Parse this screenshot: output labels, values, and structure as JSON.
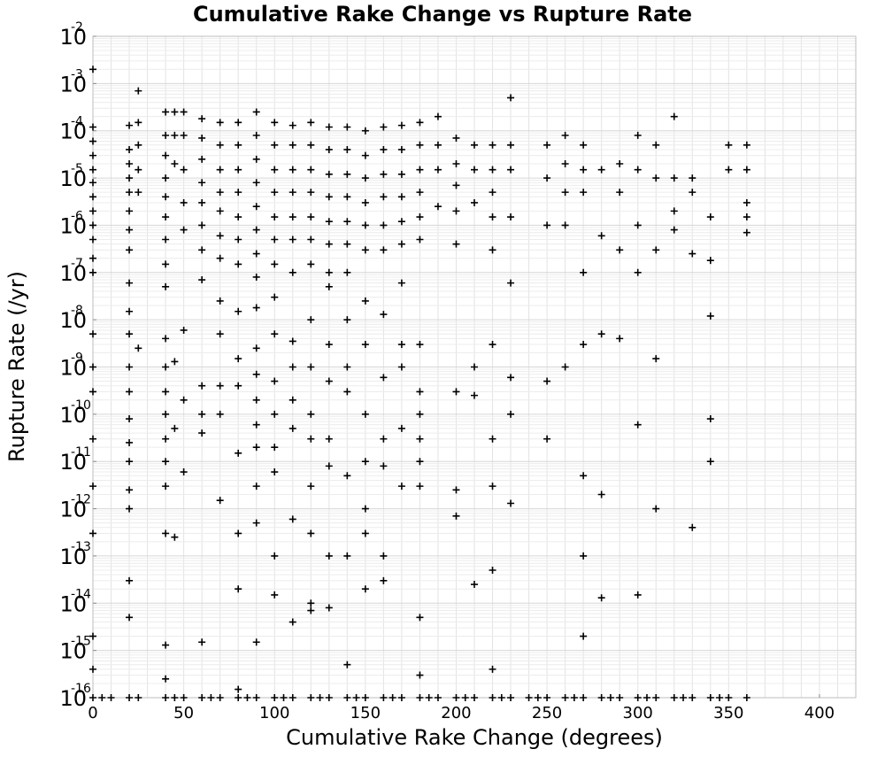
{
  "chart_data": {
    "type": "scatter",
    "title": "Cumulative Rake Change vs Rupture Rate",
    "xlabel": "Cumulative Rake Change (degrees)",
    "ylabel": "Rupture Rate (/yr)",
    "xlim": [
      0,
      420
    ],
    "ylim": [
      1e-16,
      0.01
    ],
    "yscale": "log",
    "grid": true,
    "marker": "plus",
    "xticks": [
      0,
      50,
      100,
      150,
      200,
      250,
      300,
      350,
      400
    ],
    "yticks": [
      {
        "base": "10",
        "exp": "-2"
      },
      {
        "base": "10",
        "exp": "-3"
      },
      {
        "base": "10",
        "exp": "-4"
      },
      {
        "base": "10",
        "exp": "-5"
      },
      {
        "base": "10",
        "exp": "-6"
      },
      {
        "base": "10",
        "exp": "-7"
      },
      {
        "base": "10",
        "exp": "-8"
      },
      {
        "base": "10",
        "exp": "-9"
      },
      {
        "base": "10",
        "exp": "-10"
      },
      {
        "base": "10",
        "exp": "-11"
      },
      {
        "base": "10",
        "exp": "-12"
      },
      {
        "base": "10",
        "exp": "-13"
      },
      {
        "base": "10",
        "exp": "-14"
      },
      {
        "base": "10",
        "exp": "-15"
      },
      {
        "base": "10",
        "exp": "-16"
      }
    ],
    "points": [
      [
        0,
        0.002
      ],
      [
        0,
        0.00012
      ],
      [
        0,
        6e-05
      ],
      [
        0,
        3e-05
      ],
      [
        0,
        1.5e-05
      ],
      [
        0,
        8e-06
      ],
      [
        0,
        4e-06
      ],
      [
        0,
        2e-06
      ],
      [
        0,
        1e-06
      ],
      [
        0,
        5e-07
      ],
      [
        0,
        2e-07
      ],
      [
        0,
        1e-07
      ],
      [
        0,
        5e-09
      ],
      [
        0,
        1e-09
      ],
      [
        0,
        3e-10
      ],
      [
        0,
        3e-11
      ],
      [
        0,
        3e-12
      ],
      [
        0,
        3e-13
      ],
      [
        0,
        2e-15
      ],
      [
        0,
        4e-16
      ],
      [
        20,
        0.00013
      ],
      [
        20,
        4e-05
      ],
      [
        20,
        2e-05
      ],
      [
        20,
        1e-05
      ],
      [
        20,
        5e-06
      ],
      [
        20,
        2e-06
      ],
      [
        20,
        8e-07
      ],
      [
        20,
        3e-07
      ],
      [
        20,
        6e-08
      ],
      [
        20,
        1.5e-08
      ],
      [
        20,
        5e-09
      ],
      [
        20,
        1e-09
      ],
      [
        20,
        3e-10
      ],
      [
        20,
        8e-11
      ],
      [
        20,
        2.5e-11
      ],
      [
        20,
        1e-11
      ],
      [
        20,
        2.5e-12
      ],
      [
        20,
        1e-12
      ],
      [
        20,
        3e-14
      ],
      [
        20,
        5e-15
      ],
      [
        25,
        0.0007
      ],
      [
        25,
        0.00015
      ],
      [
        25,
        5e-05
      ],
      [
        25,
        1.5e-05
      ],
      [
        25,
        5e-06
      ],
      [
        25,
        2.5e-09
      ],
      [
        40,
        0.00025
      ],
      [
        40,
        8e-05
      ],
      [
        40,
        3e-05
      ],
      [
        40,
        1e-05
      ],
      [
        40,
        4e-06
      ],
      [
        40,
        1.5e-06
      ],
      [
        40,
        5e-07
      ],
      [
        40,
        1.5e-07
      ],
      [
        40,
        5e-08
      ],
      [
        40,
        4e-09
      ],
      [
        40,
        1e-09
      ],
      [
        40,
        3e-10
      ],
      [
        40,
        1e-10
      ],
      [
        40,
        3e-11
      ],
      [
        40,
        1e-11
      ],
      [
        40,
        3e-12
      ],
      [
        40,
        3e-13
      ],
      [
        40,
        1.3e-15
      ],
      [
        40,
        2.5e-16
      ],
      [
        45,
        0.00025
      ],
      [
        45,
        8e-05
      ],
      [
        45,
        2e-05
      ],
      [
        45,
        1.3e-09
      ],
      [
        45,
        5e-11
      ],
      [
        45,
        2.5e-13
      ],
      [
        50,
        0.00025
      ],
      [
        50,
        8e-05
      ],
      [
        50,
        1.5e-05
      ],
      [
        50,
        3e-06
      ],
      [
        50,
        8e-07
      ],
      [
        50,
        6e-09
      ],
      [
        50,
        2e-10
      ],
      [
        50,
        6e-12
      ],
      [
        60,
        0.00018
      ],
      [
        60,
        7e-05
      ],
      [
        60,
        2.5e-05
      ],
      [
        60,
        8e-06
      ],
      [
        60,
        3e-06
      ],
      [
        60,
        1e-06
      ],
      [
        60,
        3e-07
      ],
      [
        60,
        7e-08
      ],
      [
        60,
        4e-10
      ],
      [
        60,
        1e-10
      ],
      [
        60,
        4e-11
      ],
      [
        60,
        1.5e-15
      ],
      [
        70,
        0.00015
      ],
      [
        70,
        5e-05
      ],
      [
        70,
        1.5e-05
      ],
      [
        70,
        5e-06
      ],
      [
        70,
        2e-06
      ],
      [
        70,
        6e-07
      ],
      [
        70,
        2e-07
      ],
      [
        70,
        2.5e-08
      ],
      [
        70,
        5e-09
      ],
      [
        70,
        4e-10
      ],
      [
        70,
        1e-10
      ],
      [
        70,
        1.5e-12
      ],
      [
        80,
        0.00015
      ],
      [
        80,
        5e-05
      ],
      [
        80,
        1.5e-05
      ],
      [
        80,
        5e-06
      ],
      [
        80,
        1.5e-06
      ],
      [
        80,
        5e-07
      ],
      [
        80,
        1.5e-07
      ],
      [
        80,
        1.5e-08
      ],
      [
        80,
        1.5e-09
      ],
      [
        80,
        4e-10
      ],
      [
        80,
        1.5e-11
      ],
      [
        80,
        3e-13
      ],
      [
        80,
        2e-14
      ],
      [
        80,
        1.5e-16
      ],
      [
        90,
        0.00025
      ],
      [
        90,
        8e-05
      ],
      [
        90,
        2.5e-05
      ],
      [
        90,
        8e-06
      ],
      [
        90,
        2.5e-06
      ],
      [
        90,
        8e-07
      ],
      [
        90,
        2.5e-07
      ],
      [
        90,
        8e-08
      ],
      [
        90,
        1.8e-08
      ],
      [
        90,
        2.5e-09
      ],
      [
        90,
        7e-10
      ],
      [
        90,
        2e-10
      ],
      [
        90,
        6e-11
      ],
      [
        90,
        2e-11
      ],
      [
        90,
        3e-12
      ],
      [
        90,
        5e-13
      ],
      [
        90,
        1.5e-15
      ],
      [
        100,
        0.00015
      ],
      [
        100,
        5e-05
      ],
      [
        100,
        1.5e-05
      ],
      [
        100,
        5e-06
      ],
      [
        100,
        1.5e-06
      ],
      [
        100,
        5e-07
      ],
      [
        100,
        1.5e-07
      ],
      [
        100,
        3e-08
      ],
      [
        100,
        5e-09
      ],
      [
        100,
        5e-10
      ],
      [
        100,
        1e-10
      ],
      [
        100,
        2e-11
      ],
      [
        100,
        6e-12
      ],
      [
        100,
        1e-13
      ],
      [
        100,
        1.5e-14
      ],
      [
        110,
        0.00013
      ],
      [
        110,
        5e-05
      ],
      [
        110,
        1.5e-05
      ],
      [
        110,
        5e-06
      ],
      [
        110,
        1.5e-06
      ],
      [
        110,
        5e-07
      ],
      [
        110,
        1e-07
      ],
      [
        110,
        3.5e-09
      ],
      [
        110,
        1e-09
      ],
      [
        110,
        2e-10
      ],
      [
        110,
        5e-11
      ],
      [
        110,
        6e-13
      ],
      [
        110,
        4e-15
      ],
      [
        120,
        0.00015
      ],
      [
        120,
        5e-05
      ],
      [
        120,
        1.5e-05
      ],
      [
        120,
        5e-06
      ],
      [
        120,
        1.5e-06
      ],
      [
        120,
        5e-07
      ],
      [
        120,
        1.5e-07
      ],
      [
        120,
        1e-08
      ],
      [
        120,
        1e-09
      ],
      [
        120,
        1e-10
      ],
      [
        120,
        3e-11
      ],
      [
        120,
        3e-12
      ],
      [
        120,
        3e-13
      ],
      [
        120,
        1e-14
      ],
      [
        120,
        7e-15
      ],
      [
        130,
        0.00012
      ],
      [
        130,
        4e-05
      ],
      [
        130,
        1.2e-05
      ],
      [
        130,
        4e-06
      ],
      [
        130,
        1.2e-06
      ],
      [
        130,
        4e-07
      ],
      [
        130,
        1e-07
      ],
      [
        130,
        5e-08
      ],
      [
        130,
        3e-09
      ],
      [
        130,
        5e-10
      ],
      [
        130,
        3e-11
      ],
      [
        130,
        8e-12
      ],
      [
        130,
        1e-13
      ],
      [
        130,
        8e-15
      ],
      [
        140,
        0.00012
      ],
      [
        140,
        4e-05
      ],
      [
        140,
        1.2e-05
      ],
      [
        140,
        4e-06
      ],
      [
        140,
        1.2e-06
      ],
      [
        140,
        4e-07
      ],
      [
        140,
        1e-07
      ],
      [
        140,
        1e-08
      ],
      [
        140,
        1e-09
      ],
      [
        140,
        3e-10
      ],
      [
        140,
        5e-12
      ],
      [
        140,
        1e-13
      ],
      [
        140,
        5e-16
      ],
      [
        150,
        0.0001
      ],
      [
        150,
        3e-05
      ],
      [
        150,
        1e-05
      ],
      [
        150,
        3e-06
      ],
      [
        150,
        1e-06
      ],
      [
        150,
        3e-07
      ],
      [
        150,
        2.5e-08
      ],
      [
        150,
        3e-09
      ],
      [
        150,
        1e-10
      ],
      [
        150,
        1e-11
      ],
      [
        150,
        1e-12
      ],
      [
        150,
        3e-13
      ],
      [
        150,
        2e-14
      ],
      [
        160,
        0.00012
      ],
      [
        160,
        4e-05
      ],
      [
        160,
        1.2e-05
      ],
      [
        160,
        4e-06
      ],
      [
        160,
        1e-06
      ],
      [
        160,
        3e-07
      ],
      [
        160,
        1.3e-08
      ],
      [
        160,
        6e-10
      ],
      [
        160,
        3e-11
      ],
      [
        160,
        8e-12
      ],
      [
        160,
        1e-13
      ],
      [
        160,
        3e-14
      ],
      [
        170,
        0.00013
      ],
      [
        170,
        4e-05
      ],
      [
        170,
        1.2e-05
      ],
      [
        170,
        4e-06
      ],
      [
        170,
        1.2e-06
      ],
      [
        170,
        4e-07
      ],
      [
        170,
        6e-08
      ],
      [
        170,
        3e-09
      ],
      [
        170,
        1e-09
      ],
      [
        170,
        5e-11
      ],
      [
        170,
        3e-12
      ],
      [
        180,
        0.00015
      ],
      [
        180,
        5e-05
      ],
      [
        180,
        1.5e-05
      ],
      [
        180,
        5e-06
      ],
      [
        180,
        1.5e-06
      ],
      [
        180,
        5e-07
      ],
      [
        180,
        3e-09
      ],
      [
        180,
        3e-10
      ],
      [
        180,
        1e-10
      ],
      [
        180,
        3e-11
      ],
      [
        180,
        1e-11
      ],
      [
        180,
        3e-12
      ],
      [
        180,
        5e-15
      ],
      [
        180,
        3e-16
      ],
      [
        190,
        0.0002
      ],
      [
        190,
        5e-05
      ],
      [
        190,
        1.5e-05
      ],
      [
        190,
        2.5e-06
      ],
      [
        200,
        7e-05
      ],
      [
        200,
        2e-05
      ],
      [
        200,
        7e-06
      ],
      [
        200,
        2e-06
      ],
      [
        200,
        4e-07
      ],
      [
        200,
        3e-10
      ],
      [
        200,
        2.5e-12
      ],
      [
        200,
        7e-13
      ],
      [
        210,
        5e-05
      ],
      [
        210,
        1.5e-05
      ],
      [
        210,
        3e-06
      ],
      [
        210,
        1e-09
      ],
      [
        210,
        2.5e-10
      ],
      [
        210,
        2.5e-14
      ],
      [
        220,
        5e-05
      ],
      [
        220,
        1.5e-05
      ],
      [
        220,
        5e-06
      ],
      [
        220,
        1.5e-06
      ],
      [
        220,
        3e-07
      ],
      [
        220,
        3e-09
      ],
      [
        220,
        3e-11
      ],
      [
        220,
        3e-12
      ],
      [
        220,
        5e-14
      ],
      [
        220,
        4e-16
      ],
      [
        230,
        0.0005
      ],
      [
        230,
        5e-05
      ],
      [
        230,
        1.5e-05
      ],
      [
        230,
        1.5e-06
      ],
      [
        230,
        6e-08
      ],
      [
        230,
        6e-10
      ],
      [
        230,
        1e-10
      ],
      [
        230,
        1.3e-12
      ],
      [
        250,
        5e-05
      ],
      [
        250,
        1e-05
      ],
      [
        250,
        1e-06
      ],
      [
        250,
        5e-10
      ],
      [
        250,
        3e-11
      ],
      [
        260,
        8e-05
      ],
      [
        260,
        2e-05
      ],
      [
        260,
        5e-06
      ],
      [
        260,
        1e-06
      ],
      [
        260,
        1e-09
      ],
      [
        270,
        5e-05
      ],
      [
        270,
        1.5e-05
      ],
      [
        270,
        5e-06
      ],
      [
        270,
        1e-07
      ],
      [
        270,
        3e-09
      ],
      [
        270,
        5e-12
      ],
      [
        270,
        1e-13
      ],
      [
        270,
        2e-15
      ],
      [
        280,
        1.5e-05
      ],
      [
        280,
        6e-07
      ],
      [
        280,
        5e-09
      ],
      [
        280,
        2e-12
      ],
      [
        280,
        1.3e-14
      ],
      [
        290,
        2e-05
      ],
      [
        290,
        5e-06
      ],
      [
        290,
        3e-07
      ],
      [
        290,
        4e-09
      ],
      [
        300,
        8e-05
      ],
      [
        300,
        1.5e-05
      ],
      [
        300,
        1e-06
      ],
      [
        300,
        1e-07
      ],
      [
        300,
        6e-11
      ],
      [
        300,
        1.5e-14
      ],
      [
        310,
        5e-05
      ],
      [
        310,
        1e-05
      ],
      [
        310,
        3e-07
      ],
      [
        310,
        1.5e-09
      ],
      [
        310,
        1e-12
      ],
      [
        320,
        0.0002
      ],
      [
        320,
        1e-05
      ],
      [
        320,
        8e-07
      ],
      [
        320,
        2e-06
      ],
      [
        330,
        1e-05
      ],
      [
        330,
        5e-06
      ],
      [
        330,
        2.5e-07
      ],
      [
        330,
        4e-13
      ],
      [
        340,
        1.5e-06
      ],
      [
        340,
        1.8e-07
      ],
      [
        340,
        1.2e-08
      ],
      [
        340,
        8e-11
      ],
      [
        340,
        1e-11
      ],
      [
        350,
        5e-05
      ],
      [
        350,
        1.5e-05
      ],
      [
        360,
        5e-05
      ],
      [
        360,
        1.5e-05
      ],
      [
        360,
        3e-06
      ],
      [
        360,
        1.5e-06
      ],
      [
        360,
        7e-07
      ]
    ],
    "floor_points": [
      0,
      5,
      10,
      20,
      25,
      40,
      45,
      50,
      60,
      65,
      70,
      80,
      85,
      90,
      100,
      105,
      110,
      120,
      125,
      130,
      140,
      145,
      150,
      160,
      165,
      170,
      180,
      185,
      190,
      200,
      205,
      210,
      220,
      225,
      230,
      240,
      245,
      250,
      260,
      265,
      270,
      280,
      285,
      290,
      300,
      305,
      310,
      320,
      325,
      330,
      340,
      345,
      350,
      360
    ]
  }
}
